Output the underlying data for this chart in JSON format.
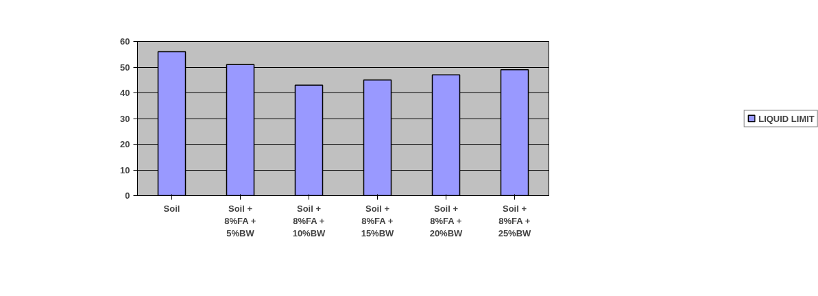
{
  "chart_data": {
    "type": "bar",
    "categories": [
      "Soil",
      "Soil + 8%FA + 5%BW",
      "Soil + 8%FA + 10%BW",
      "Soil + 8%FA + 15%BW",
      "Soil + 8%FA + 20%BW",
      "Soil + 8%FA + 25%BW"
    ],
    "series": [
      {
        "name": "LIQUID LIMIT",
        "color": "#9999ff",
        "values": [
          56,
          51,
          43,
          45,
          47,
          49
        ]
      }
    ],
    "ylim": [
      0,
      60
    ],
    "yticks": [
      0,
      10,
      20,
      30,
      40,
      50,
      60
    ],
    "grid": "y",
    "legend": "right"
  }
}
